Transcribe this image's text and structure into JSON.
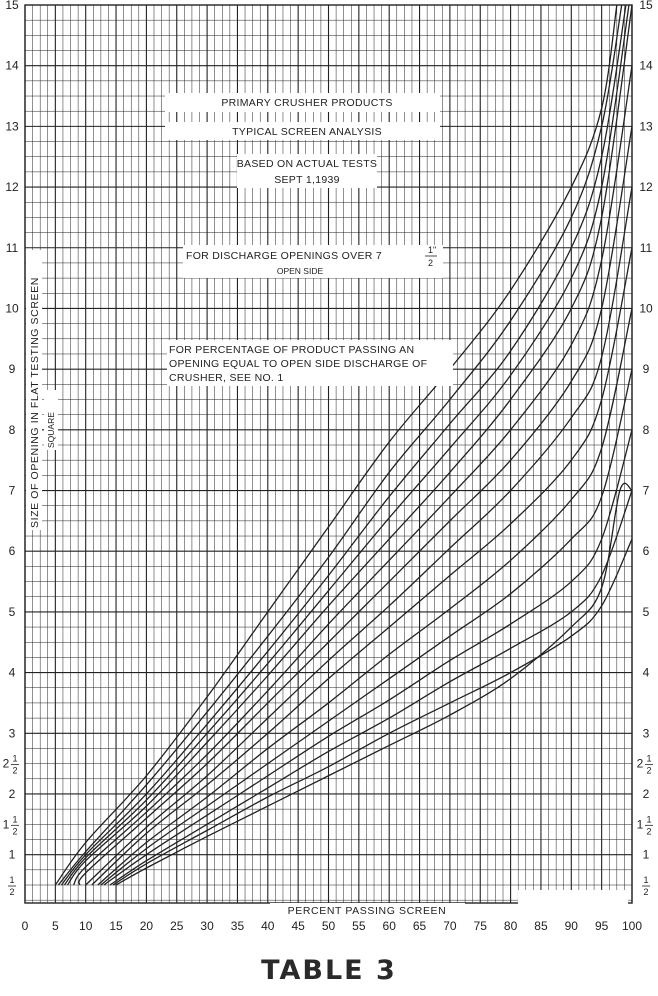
{
  "title_notes": {
    "line1": "PRIMARY CRUSHER PRODUCTS",
    "line2": "TYPICAL SCREEN ANALYSIS",
    "line3a": "BASED ON ACTUAL TESTS",
    "line3b": "SEPT 1,1939",
    "line4a": "FOR DISCHARGE OPENINGS OVER 7",
    "line4a_frac_num": "1\"",
    "line4a_frac_den": "2",
    "line4b": "OPEN SIDE",
    "line5a": "FOR PERCENTAGE OF PRODUCT PASSING AN",
    "line5b": "OPENING EQUAL TO OPEN SIDE DISCHARGE OF",
    "line5c": "CRUSHER, SEE NO. 1"
  },
  "table_title": "TABLE 3",
  "colors": {
    "ink": "#222222",
    "paper": "#ffffff"
  },
  "chart_data": {
    "type": "line",
    "xlabel": "PERCENT PASSING SCREEN",
    "ylabel": "SIZE OF OPENING IN FLAT TESTING SCREEN",
    "ylabel_sub": "SQUARE",
    "xlim": [
      0,
      100
    ],
    "ylim": [
      0,
      15
    ],
    "grid": true,
    "x_ticks": [
      0,
      5,
      10,
      15,
      20,
      25,
      30,
      35,
      40,
      45,
      50,
      55,
      60,
      65,
      70,
      75,
      80,
      85,
      90,
      95,
      100
    ],
    "y_ticks": [
      {
        "value": 0.5,
        "label": "1/2",
        "frac": true
      },
      {
        "value": 1,
        "label": "1"
      },
      {
        "value": 1.5,
        "label": "1 1/2",
        "frac": true
      },
      {
        "value": 2,
        "label": "2"
      },
      {
        "value": 2.5,
        "label": "2 1/2",
        "frac": true
      },
      {
        "value": 3,
        "label": "3"
      },
      {
        "value": 4,
        "label": "4"
      },
      {
        "value": 5,
        "label": "5"
      },
      {
        "value": 6,
        "label": "6"
      },
      {
        "value": 7,
        "label": "7"
      },
      {
        "value": 8,
        "label": "8"
      },
      {
        "value": 9,
        "label": "9"
      },
      {
        "value": 10,
        "label": "10"
      },
      {
        "value": 11,
        "label": "11"
      },
      {
        "value": 12,
        "label": "12"
      },
      {
        "value": 13,
        "label": "13"
      },
      {
        "value": 14,
        "label": "14"
      },
      {
        "value": 15,
        "label": "15"
      }
    ],
    "series": [
      {
        "values": [
          [
            5,
            0.5
          ],
          [
            10,
            1.2
          ],
          [
            20,
            2.3
          ],
          [
            30,
            3.6
          ],
          [
            40,
            5.0
          ],
          [
            50,
            6.4
          ],
          [
            60,
            7.8
          ],
          [
            70,
            9.0
          ],
          [
            80,
            10.3
          ],
          [
            90,
            12.0
          ],
          [
            95,
            13.3
          ],
          [
            97.5,
            15
          ]
        ]
      },
      {
        "values": [
          [
            5.5,
            0.5
          ],
          [
            10,
            1.05
          ],
          [
            20,
            2.15
          ],
          [
            30,
            3.35
          ],
          [
            40,
            4.6
          ],
          [
            50,
            5.9
          ],
          [
            60,
            7.3
          ],
          [
            70,
            8.5
          ],
          [
            80,
            9.8
          ],
          [
            90,
            11.5
          ],
          [
            95,
            13.0
          ],
          [
            98.3,
            15
          ]
        ]
      },
      {
        "values": [
          [
            6,
            0.5
          ],
          [
            10,
            1.0
          ],
          [
            20,
            2.0
          ],
          [
            30,
            3.15
          ],
          [
            40,
            4.35
          ],
          [
            50,
            5.6
          ],
          [
            60,
            6.9
          ],
          [
            70,
            8.1
          ],
          [
            80,
            9.3
          ],
          [
            90,
            11.0
          ],
          [
            95,
            12.5
          ],
          [
            99,
            15
          ]
        ]
      },
      {
        "values": [
          [
            6.5,
            0.5
          ],
          [
            10,
            0.95
          ],
          [
            20,
            1.9
          ],
          [
            30,
            3.0
          ],
          [
            40,
            4.15
          ],
          [
            50,
            5.35
          ],
          [
            60,
            6.55
          ],
          [
            70,
            7.7
          ],
          [
            80,
            8.9
          ],
          [
            90,
            10.5
          ],
          [
            95,
            12.0
          ],
          [
            99.5,
            15
          ]
        ]
      },
      {
        "values": [
          [
            7,
            0.5
          ],
          [
            10,
            0.9
          ],
          [
            20,
            1.8
          ],
          [
            30,
            2.85
          ],
          [
            40,
            3.95
          ],
          [
            50,
            5.1
          ],
          [
            60,
            6.2
          ],
          [
            70,
            7.3
          ],
          [
            80,
            8.5
          ],
          [
            90,
            10.0
          ],
          [
            95,
            11.5
          ],
          [
            100,
            15
          ]
        ]
      },
      {
        "values": [
          [
            8,
            0.5
          ],
          [
            10,
            0.8
          ],
          [
            20,
            1.7
          ],
          [
            30,
            2.65
          ],
          [
            40,
            3.7
          ],
          [
            50,
            4.8
          ],
          [
            60,
            5.85
          ],
          [
            70,
            6.9
          ],
          [
            80,
            8.0
          ],
          [
            90,
            9.4
          ],
          [
            95,
            10.8
          ],
          [
            100,
            14.0
          ]
        ]
      },
      {
        "values": [
          [
            9,
            0.5
          ],
          [
            10,
            0.7
          ],
          [
            20,
            1.6
          ],
          [
            30,
            2.5
          ],
          [
            40,
            3.5
          ],
          [
            50,
            4.5
          ],
          [
            60,
            5.5
          ],
          [
            70,
            6.5
          ],
          [
            80,
            7.5
          ],
          [
            90,
            8.8
          ],
          [
            95,
            10.0
          ],
          [
            100,
            13.0
          ]
        ]
      },
      {
        "values": [
          [
            10,
            0.5
          ],
          [
            20,
            1.45
          ],
          [
            30,
            2.3
          ],
          [
            40,
            3.25
          ],
          [
            50,
            4.2
          ],
          [
            60,
            5.1
          ],
          [
            70,
            6.05
          ],
          [
            80,
            7.0
          ],
          [
            90,
            8.2
          ],
          [
            95,
            9.2
          ],
          [
            100,
            12.0
          ]
        ]
      },
      {
        "values": [
          [
            11,
            0.5
          ],
          [
            20,
            1.35
          ],
          [
            30,
            2.15
          ],
          [
            40,
            3.0
          ],
          [
            50,
            3.9
          ],
          [
            60,
            4.75
          ],
          [
            70,
            5.6
          ],
          [
            80,
            6.45
          ],
          [
            90,
            7.5
          ],
          [
            95,
            8.5
          ],
          [
            100,
            11.0
          ]
        ]
      },
      {
        "values": [
          [
            12,
            0.5
          ],
          [
            20,
            1.2
          ],
          [
            30,
            1.95
          ],
          [
            40,
            2.75
          ],
          [
            50,
            3.5
          ],
          [
            60,
            4.3
          ],
          [
            70,
            5.05
          ],
          [
            80,
            5.85
          ],
          [
            90,
            6.85
          ],
          [
            95,
            7.7
          ],
          [
            100,
            10.0
          ]
        ]
      },
      {
        "values": [
          [
            12.5,
            0.5
          ],
          [
            20,
            1.1
          ],
          [
            30,
            1.8
          ],
          [
            40,
            2.5
          ],
          [
            50,
            3.2
          ],
          [
            60,
            3.9
          ],
          [
            70,
            4.6
          ],
          [
            80,
            5.3
          ],
          [
            90,
            6.2
          ],
          [
            95,
            6.9
          ],
          [
            100,
            9.0
          ]
        ]
      },
      {
        "values": [
          [
            13,
            0.5
          ],
          [
            20,
            1.0
          ],
          [
            30,
            1.65
          ],
          [
            40,
            2.3
          ],
          [
            50,
            2.95
          ],
          [
            60,
            3.55
          ],
          [
            70,
            4.2
          ],
          [
            80,
            4.8
          ],
          [
            90,
            5.5
          ],
          [
            95,
            6.2
          ],
          [
            100,
            8.0
          ]
        ]
      },
      {
        "values": [
          [
            14,
            0.5
          ],
          [
            20,
            0.9
          ],
          [
            30,
            1.5
          ],
          [
            40,
            2.1
          ],
          [
            50,
            2.7
          ],
          [
            60,
            3.25
          ],
          [
            70,
            3.85
          ],
          [
            80,
            4.4
          ],
          [
            90,
            5.0
          ],
          [
            95,
            5.6
          ],
          [
            100,
            7.0
          ]
        ]
      },
      {
        "values": [
          [
            14.5,
            0.5
          ],
          [
            20,
            0.85
          ],
          [
            30,
            1.4
          ],
          [
            40,
            1.95
          ],
          [
            50,
            2.45
          ],
          [
            60,
            3.0
          ],
          [
            70,
            3.5
          ],
          [
            80,
            4.0
          ],
          [
            90,
            4.6
          ],
          [
            95,
            5.1
          ],
          [
            100,
            6.2
          ]
        ]
      },
      {
        "values": [
          [
            15,
            0.5
          ],
          [
            20,
            0.78
          ],
          [
            30,
            1.3
          ],
          [
            40,
            1.8
          ],
          [
            50,
            2.3
          ],
          [
            60,
            2.8
          ],
          [
            70,
            3.3
          ],
          [
            80,
            3.9
          ],
          [
            90,
            4.75
          ],
          [
            95,
            5.4
          ],
          [
            98,
            7.0
          ],
          [
            100,
            7.0
          ]
        ]
      }
    ]
  }
}
